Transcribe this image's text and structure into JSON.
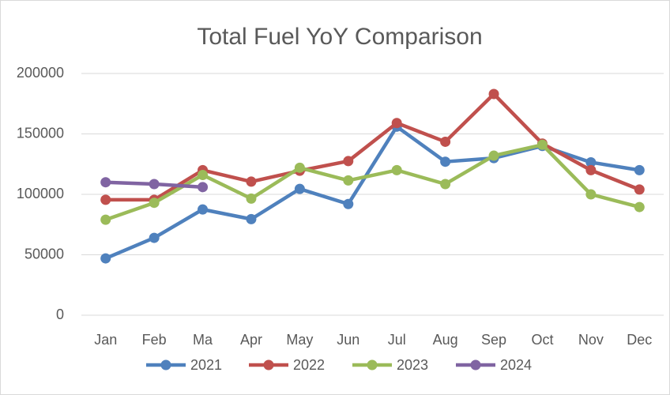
{
  "chart_data": {
    "type": "line",
    "title": "Total Fuel YoY Comparison",
    "categories": [
      "Jan",
      "Feb",
      "Ma",
      "Apr",
      "May",
      "Jun",
      "Jul",
      "Aug",
      "Sep",
      "Oct",
      "Nov",
      "Dec"
    ],
    "series": [
      {
        "name": "2021",
        "color": "#4f81bd",
        "values": [
          47000,
          64000,
          87500,
          79500,
          104500,
          92000,
          156000,
          127000,
          130000,
          140000,
          126500,
          120000
        ]
      },
      {
        "name": "2022",
        "color": "#c0504d",
        "values": [
          95500,
          95500,
          120000,
          110500,
          119500,
          127500,
          159000,
          143500,
          183000,
          142000,
          120000,
          104000
        ]
      },
      {
        "name": "2023",
        "color": "#9bbb59",
        "values": [
          79000,
          93000,
          116000,
          96500,
          122000,
          111500,
          120000,
          108500,
          132000,
          141000,
          100000,
          89500
        ]
      },
      {
        "name": "2024",
        "color": "#8064a2",
        "values": [
          110000,
          108500,
          106000,
          null,
          null,
          null,
          null,
          null,
          null,
          null,
          null,
          null
        ]
      }
    ],
    "ylim": [
      0,
      200000
    ],
    "yticks": [
      0,
      50000,
      100000,
      150000,
      200000
    ],
    "grid": true,
    "legend": "bottom"
  }
}
